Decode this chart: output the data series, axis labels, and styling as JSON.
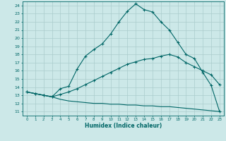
{
  "title": "",
  "xlabel": "Humidex (Indice chaleur)",
  "ylabel": "",
  "bg_color": "#cce8e8",
  "grid_color": "#aacccc",
  "line_color": "#006666",
  "xlim": [
    -0.5,
    23.5
  ],
  "ylim": [
    10.5,
    24.5
  ],
  "xticks": [
    0,
    1,
    2,
    3,
    4,
    5,
    6,
    7,
    8,
    9,
    10,
    11,
    12,
    13,
    14,
    15,
    16,
    17,
    18,
    19,
    20,
    21,
    22,
    23
  ],
  "yticks": [
    11,
    12,
    13,
    14,
    15,
    16,
    17,
    18,
    19,
    20,
    21,
    22,
    23,
    24
  ],
  "curve1_x": [
    0,
    1,
    2,
    3,
    4,
    5,
    6,
    7,
    8,
    9,
    10,
    11,
    12,
    13,
    14,
    15,
    16,
    17,
    18,
    19,
    20,
    21,
    22,
    23
  ],
  "curve1_y": [
    13.4,
    13.2,
    13.0,
    12.8,
    13.8,
    14.1,
    16.2,
    17.8,
    18.6,
    19.3,
    20.5,
    22.0,
    23.3,
    24.2,
    23.5,
    23.2,
    22.0,
    21.0,
    19.5,
    18.0,
    17.5,
    15.8,
    14.2,
    11.0
  ],
  "curve2_x": [
    0,
    1,
    2,
    3,
    4,
    5,
    6,
    7,
    8,
    9,
    10,
    11,
    12,
    13,
    14,
    15,
    16,
    17,
    18,
    19,
    20,
    21,
    22,
    23
  ],
  "curve2_y": [
    13.4,
    13.2,
    13.0,
    12.8,
    13.1,
    13.4,
    13.8,
    14.3,
    14.8,
    15.3,
    15.8,
    16.3,
    16.8,
    17.1,
    17.4,
    17.5,
    17.8,
    18.0,
    17.7,
    17.0,
    16.5,
    16.0,
    15.5,
    14.3
  ],
  "curve3_x": [
    0,
    1,
    2,
    3,
    4,
    5,
    6,
    7,
    8,
    9,
    10,
    11,
    12,
    13,
    14,
    15,
    16,
    17,
    18,
    19,
    20,
    21,
    22,
    23
  ],
  "curve3_y": [
    13.4,
    13.2,
    13.0,
    12.8,
    12.5,
    12.3,
    12.2,
    12.1,
    12.0,
    12.0,
    11.9,
    11.9,
    11.8,
    11.8,
    11.7,
    11.7,
    11.6,
    11.6,
    11.5,
    11.4,
    11.3,
    11.2,
    11.1,
    11.0
  ]
}
